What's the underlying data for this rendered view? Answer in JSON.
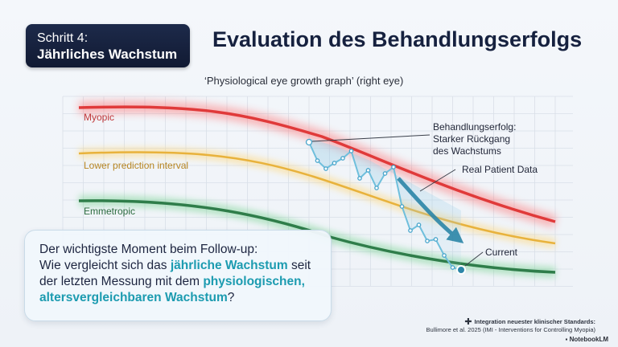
{
  "badge": {
    "line1": "Schritt 4:",
    "line2": "Jährliches Wachstum"
  },
  "title": "Evaluation des Behandlungserfolgs",
  "chart_data": {
    "type": "line",
    "title": "‘Physiological eye growth graph’ (right eye)",
    "xlabel": "",
    "ylabel": "",
    "grid": true,
    "series": [
      {
        "name": "Myopic",
        "color": "#e03a3a",
        "role": "band"
      },
      {
        "name": "Lower prediction interval",
        "color": "#e8b23c",
        "role": "band"
      },
      {
        "name": "Emmetropic",
        "color": "#2f7d4a",
        "role": "band"
      },
      {
        "name": "Real Patient Data",
        "color": "#6fbfdc",
        "role": "patient",
        "values": [
          177,
          200,
          210,
          203,
          197,
          188,
          222,
          212,
          234,
          216,
          208,
          257,
          287,
          280,
          300,
          298,
          318,
          333,
          336
        ]
      }
    ],
    "annotations": {
      "success": [
        "Behandlungserfolg:",
        "Starker Rückgang",
        "des Wachstums"
      ],
      "patient": "Real Patient Data",
      "current": "Current"
    }
  },
  "callout": {
    "t1": "Der wichtigste Moment beim Follow-up:",
    "t2": "Wie vergleicht sich das ",
    "h1": "jährliche Wachstum",
    "t3": " seit der letzten Messung mit dem ",
    "h2": "physiologischen, altersvergleichbaren Wachstum",
    "t4": "?"
  },
  "footer": {
    "line1": "Integration neuester klinischer Standards:",
    "line2": "Bullimore et al. 2025 (IMI - Interventions for Controlling Myopia)"
  },
  "brand": "NotebookLM"
}
